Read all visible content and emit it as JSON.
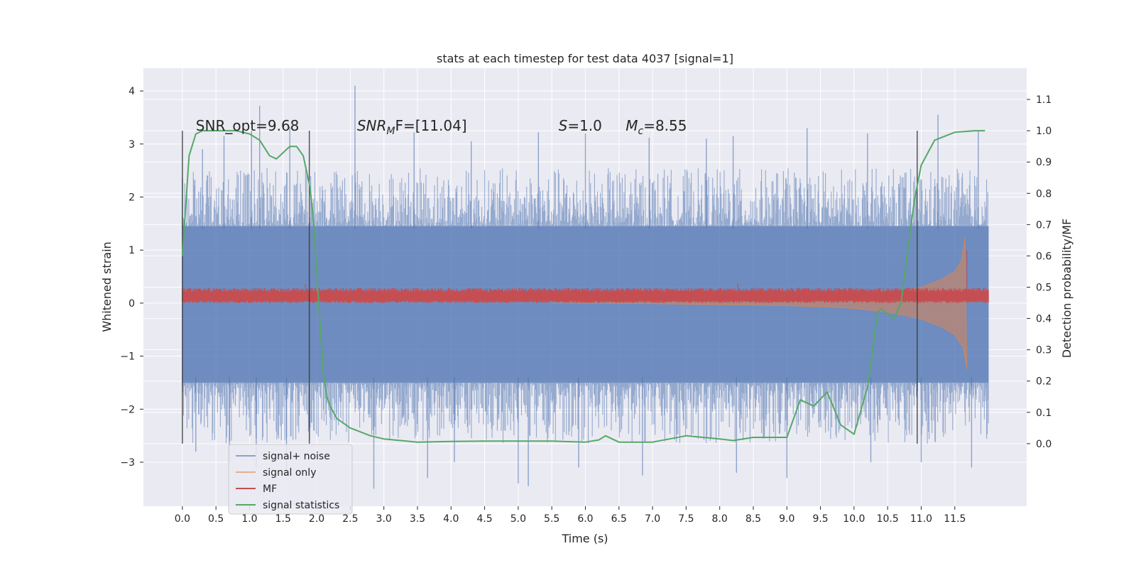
{
  "chart_data": {
    "type": "line",
    "title": "stats at each timestep for test data 4037 [signal=1]",
    "xlabel": "Time (s)",
    "ylabel_left": "Whitened strain",
    "ylabel_right": "Detection probability/MF",
    "xlim": [
      -0.58,
      12.57
    ],
    "ylim_left": [
      -3.83,
      4.43
    ],
    "ylim_right": [
      -0.2,
      1.2
    ],
    "x_ticks": [
      "0.0",
      "0.5",
      "1.0",
      "1.5",
      "2.0",
      "2.5",
      "3.0",
      "3.5",
      "4.0",
      "4.5",
      "5.0",
      "5.5",
      "6.0",
      "6.5",
      "7.0",
      "7.5",
      "8.0",
      "8.5",
      "9.0",
      "9.5",
      "10.0",
      "10.5",
      "11.0",
      "11.5"
    ],
    "y_left_ticks": [
      "4",
      "3",
      "2",
      "1",
      "0",
      "−1",
      "−2",
      "−3"
    ],
    "y_right_ticks": [
      "1.1",
      "1.0",
      "0.9",
      "0.8",
      "0.7",
      "0.6",
      "0.5",
      "0.4",
      "0.3",
      "0.2",
      "0.1",
      "0.0"
    ],
    "grid": true,
    "legend_position": "lower-left",
    "background": "#eaeaf2",
    "annotations": [
      {
        "text": "SNR_opt=9.68",
        "x": 0.2
      },
      {
        "text": "SNR",
        "sub": "M",
        "after": "F=[11.04]",
        "x": 2.6,
        "italic": true
      },
      {
        "text": "S",
        "after": "=1.0",
        "x": 5.6,
        "italic": true
      },
      {
        "text": "M",
        "sub": "c",
        "after": "=8.55",
        "x": 6.6,
        "italic": true
      }
    ],
    "vertical_lines": [
      {
        "x": 0.0,
        "y_range": [
          -2.65,
          3.25
        ]
      },
      {
        "x": 1.89,
        "y_range": [
          -2.65,
          3.25
        ]
      },
      {
        "x": 10.94,
        "y_range": [
          -2.65,
          3.25
        ]
      }
    ],
    "series": [
      {
        "name": "signal+ noise",
        "color": "#4c72b0",
        "axis": "left",
        "kind": "noise_band",
        "x_range": [
          0.0,
          12.0
        ],
        "envelope": [
          -2.3,
          2.05
        ],
        "spikes_up": [
          [
            0.0,
            2.35
          ],
          [
            0.3,
            2.9
          ],
          [
            0.62,
            3.15
          ],
          [
            1.03,
            3.25
          ],
          [
            1.15,
            3.72
          ],
          [
            1.6,
            3.32
          ],
          [
            2.57,
            4.1
          ],
          [
            3.45,
            3.22
          ],
          [
            4.3,
            3.05
          ],
          [
            5.3,
            3.22
          ],
          [
            6.0,
            3.2
          ],
          [
            6.95,
            3.12
          ],
          [
            7.8,
            3.1
          ],
          [
            8.2,
            3.15
          ],
          [
            9.3,
            3.3
          ],
          [
            10.2,
            3.2
          ],
          [
            11.25,
            3.55
          ],
          [
            11.85,
            3.25
          ]
        ],
        "spikes_down": [
          [
            0.2,
            -2.8
          ],
          [
            0.7,
            -3.0
          ],
          [
            1.1,
            -3.1
          ],
          [
            1.55,
            -3.25
          ],
          [
            2.85,
            -3.5
          ],
          [
            3.65,
            -3.3
          ],
          [
            4.05,
            -3.0
          ],
          [
            5.0,
            -3.4
          ],
          [
            5.15,
            -3.45
          ],
          [
            5.9,
            -3.1
          ],
          [
            6.85,
            -3.25
          ],
          [
            8.25,
            -3.2
          ],
          [
            9.0,
            -3.3
          ],
          [
            10.25,
            -3.0
          ],
          [
            11.0,
            -3.0
          ],
          [
            11.75,
            -3.1
          ]
        ]
      },
      {
        "name": "signal only",
        "color": "#dd8452",
        "axis": "left",
        "kind": "chirp",
        "x_range": [
          5.5,
          11.68
        ],
        "points": [
          [
            5.5,
            0.0
          ],
          [
            7.0,
            0.01
          ],
          [
            8.0,
            0.03
          ],
          [
            9.0,
            0.05
          ],
          [
            9.5,
            0.07
          ],
          [
            10.0,
            0.1
          ],
          [
            10.5,
            0.17
          ],
          [
            11.0,
            0.3
          ],
          [
            11.3,
            0.45
          ],
          [
            11.5,
            0.6
          ],
          [
            11.6,
            0.8
          ],
          [
            11.65,
            1.25
          ],
          [
            11.68,
            -1.25
          ]
        ]
      },
      {
        "name": "MF",
        "color": "#c44e52",
        "axis": "left",
        "kind": "band",
        "x_range": [
          0.0,
          12.0
        ],
        "center": 0.13,
        "half_width": 0.08,
        "spikes": [
          [
            1.83,
            0.36
          ],
          [
            8.27,
            0.38
          ],
          [
            11.68,
            1.0
          ]
        ]
      },
      {
        "name": "signal statistics",
        "color": "#55a868",
        "axis": "right",
        "kind": "line",
        "x": [
          0.0,
          0.1,
          0.2,
          0.3,
          0.5,
          0.8,
          1.0,
          1.15,
          1.3,
          1.4,
          1.5,
          1.6,
          1.7,
          1.8,
          1.9,
          1.95,
          2.0,
          2.05,
          2.1,
          2.15,
          2.2,
          2.3,
          2.5,
          2.8,
          3.0,
          3.5,
          4.0,
          4.5,
          5.0,
          5.5,
          6.0,
          6.2,
          6.3,
          6.5,
          7.0,
          7.5,
          8.0,
          8.2,
          8.5,
          9.0,
          9.2,
          9.4,
          9.6,
          9.8,
          10.0,
          10.2,
          10.35,
          10.4,
          10.6,
          10.7,
          10.8,
          10.9,
          11.0,
          11.2,
          11.5,
          11.8,
          11.95
        ],
        "y": [
          0.6,
          0.92,
          0.99,
          1.0,
          1.0,
          1.0,
          0.99,
          0.97,
          0.92,
          0.91,
          0.93,
          0.95,
          0.95,
          0.92,
          0.82,
          0.72,
          0.55,
          0.38,
          0.22,
          0.15,
          0.12,
          0.08,
          0.05,
          0.025,
          0.015,
          0.005,
          0.007,
          0.008,
          0.008,
          0.008,
          0.005,
          0.012,
          0.025,
          0.005,
          0.005,
          0.025,
          0.015,
          0.01,
          0.02,
          0.02,
          0.14,
          0.12,
          0.165,
          0.06,
          0.03,
          0.18,
          0.42,
          0.43,
          0.4,
          0.45,
          0.62,
          0.78,
          0.89,
          0.97,
          0.995,
          1.0,
          1.0
        ]
      }
    ]
  }
}
